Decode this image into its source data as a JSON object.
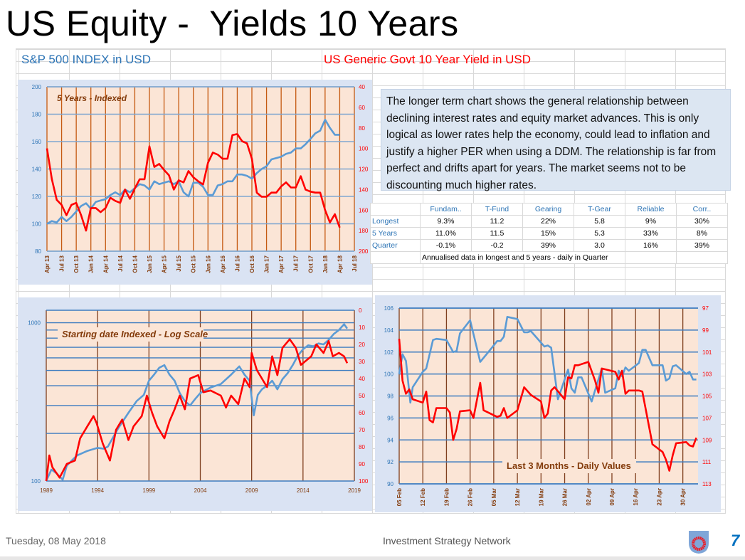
{
  "title": "US Equity -  Yields 10 Years",
  "headers": {
    "left": "S&P 500 INDEX  in  USD",
    "right": "US Generic Govt 10 Year Yield  in  USD"
  },
  "commentary": "The longer term chart shows the general relationship between declining interest rates and equity market advances.  This is only logical as lower rates help the economy, could lead to inflation and justify a higher PER when using a DDM.  The relationship is far from perfect and drifts apart for years.  The market seems not to be discounting much higher rates.",
  "stats_table": {
    "columns": [
      "Fundam..",
      "T-Fund",
      "Gearing",
      "T-Gear",
      "Reliable",
      "Corr.."
    ],
    "rows": [
      {
        "label": "Longest",
        "values": [
          "9.3%",
          "11.2",
          "22%",
          "5.8",
          "9%",
          "30%"
        ]
      },
      {
        "label": "5 Years",
        "values": [
          "11.0%",
          "11.5",
          "15%",
          "5.3",
          "33%",
          "8%"
        ]
      },
      {
        "label": "Quarter",
        "values": [
          "-0.1%",
          "-0.2",
          "39%",
          "3.0",
          "16%",
          "39%"
        ]
      }
    ],
    "note": "Annualised data in longest and 5 years - daily in Quarter"
  },
  "footer": {
    "date": "Tuesday, 08 May 2018",
    "organization": "Investment Strategy Network",
    "page": "7",
    "logo_icon": "shield-target-icon"
  },
  "colors": {
    "equity": "#5b9bd5",
    "yield": "#ff0000",
    "plot_bg": "#fbe5d6",
    "panel_bg": "#dae3f3",
    "label_brown": "#843c0c"
  },
  "chart_data": [
    {
      "type": "line",
      "title": "5 Years - Indexed",
      "x_unit": "months since Apr 13",
      "xlim": [
        0,
        63
      ],
      "x_ticks": [
        0,
        3,
        6,
        9,
        12,
        15,
        18,
        21,
        24,
        27,
        30,
        33,
        36,
        39,
        42,
        45,
        48,
        51,
        54,
        57,
        60,
        63
      ],
      "x_tick_labels": [
        "Apr 13",
        "Jul 13",
        "Oct 13",
        "Jan 14",
        "Apr 14",
        "Jul 14",
        "Oct 14",
        "Jan 15",
        "Apr 15",
        "Jul 15",
        "Oct 15",
        "Jan 16",
        "Apr 16",
        "Jul 16",
        "Oct 16",
        "Jan 17",
        "Apr 17",
        "Jul 17",
        "Oct 17",
        "Jan 18",
        "Apr 18",
        "Jul 18"
      ],
      "y_left": {
        "lim": [
          80,
          200
        ],
        "ticks": [
          80,
          100,
          120,
          140,
          160,
          180,
          200
        ],
        "tick_labels": [
          "80",
          "100",
          "120",
          "140",
          "160",
          "180",
          "200"
        ]
      },
      "y_right": {
        "lim": [
          40,
          200
        ],
        "inverted": true,
        "ticks": [
          40,
          60,
          80,
          100,
          120,
          140,
          160,
          180,
          200
        ],
        "tick_labels": [
          "40",
          "60",
          "80",
          "100",
          "120",
          "140",
          "160",
          "180",
          "200"
        ]
      },
      "series": [
        {
          "name": "S&P 500 INDEX",
          "axis": "left",
          "values": [
            100,
            102,
            101,
            105,
            102,
            105,
            109,
            113,
            115,
            111,
            116,
            117,
            118,
            121,
            123,
            121,
            125,
            123,
            126,
            129,
            128,
            125,
            131,
            129,
            130,
            131,
            129,
            131,
            123,
            120,
            130,
            130,
            127,
            121,
            121,
            128,
            129,
            131,
            131,
            136,
            136,
            135,
            133,
            137,
            140,
            142,
            147,
            148,
            149,
            151,
            152,
            155,
            155,
            158,
            162,
            166,
            168,
            176,
            170,
            165,
            165
          ]
        },
        {
          "name": "US Generic Govt 10 Year Yield",
          "axis": "right",
          "values": [
            100,
            130,
            150,
            155,
            165,
            155,
            153,
            165,
            180,
            158,
            158,
            162,
            158,
            148,
            151,
            153,
            140,
            149,
            139,
            130,
            130,
            98,
            118,
            115,
            121,
            126,
            140,
            131,
            133,
            122,
            128,
            132,
            135,
            114,
            104,
            106,
            110,
            110,
            87,
            86,
            93,
            95,
            110,
            143,
            147,
            147,
            143,
            143,
            137,
            133,
            138,
            138,
            127,
            140,
            142,
            143,
            143,
            160,
            172,
            164,
            177
          ]
        }
      ]
    },
    {
      "type": "line",
      "title": "Starting date Indexed - Log Scale",
      "x_unit": "year",
      "xlim": [
        1989,
        2019
      ],
      "x_ticks": [
        1989,
        1994,
        1999,
        2004,
        2009,
        2014,
        2019
      ],
      "x_tick_labels": [
        "1989",
        "1994",
        "1999",
        "2004",
        "2009",
        "2014",
        "2019"
      ],
      "y_left": {
        "lim": [
          100,
          1200
        ],
        "scale": "log",
        "ticks": [
          100,
          1000
        ],
        "tick_labels": [
          "100",
          "1000"
        ],
        "grid": [
          200,
          300,
          400,
          500,
          600,
          700,
          800,
          900,
          1000
        ]
      },
      "y_right": {
        "lim": [
          0,
          100
        ],
        "inverted": true,
        "ticks": [
          0,
          10,
          20,
          30,
          40,
          50,
          60,
          70,
          80,
          90,
          100
        ],
        "tick_labels": [
          "0",
          "10",
          "20",
          "30",
          "40",
          "50",
          "60",
          "70",
          "80",
          "90",
          "100"
        ]
      },
      "series": [
        {
          "name": "S&P 500 INDEX",
          "axis": "left",
          "x": [
            1989,
            1989.5,
            1990,
            1990.6,
            1991,
            1991.5,
            1992,
            1993,
            1994,
            1994.6,
            1995,
            1996,
            1997,
            1997.8,
            1998.5,
            1999,
            1999.5,
            2000,
            2000.5,
            2001,
            2001.5,
            2002,
            2002.5,
            2003,
            2003.5,
            2004,
            2005,
            2006,
            2007,
            2007.8,
            2008.3,
            2008.8,
            2009.2,
            2009.6,
            2010,
            2010.5,
            2011,
            2011.5,
            2012,
            2012.5,
            2013,
            2013.5,
            2014,
            2014.5,
            2015,
            2015.5,
            2016,
            2016.5,
            2017,
            2017.5,
            2018,
            2018.3
          ],
          "values": [
            100,
            118,
            112,
            102,
            125,
            135,
            145,
            155,
            162,
            160,
            165,
            215,
            270,
            320,
            350,
            430,
            470,
            520,
            540,
            470,
            430,
            360,
            320,
            300,
            330,
            360,
            390,
            410,
            470,
            530,
            470,
            430,
            260,
            350,
            380,
            400,
            430,
            380,
            440,
            480,
            540,
            620,
            680,
            720,
            710,
            740,
            730,
            780,
            850,
            900,
            980,
            920
          ]
        },
        {
          "name": "US Generic Govt 10 Year Yield",
          "axis": "right",
          "x": [
            1989,
            1989.3,
            1989.6,
            1990.3,
            1991,
            1991.8,
            1992.3,
            1993,
            1993.6,
            1993.9,
            1994.5,
            1995.2,
            1995.8,
            1996.4,
            1997,
            1997.5,
            1998.3,
            1998.8,
            1999.3,
            1999.8,
            2000.5,
            2001,
            2001.5,
            2002,
            2002.5,
            2003,
            2003.8,
            2004.3,
            2005,
            2006,
            2006.5,
            2007,
            2007.7,
            2008.3,
            2008.8,
            2009,
            2009.5,
            2010,
            2010.5,
            2011,
            2011.5,
            2012,
            2012.7,
            2013.3,
            2013.8,
            2014.2,
            2014.8,
            2015.3,
            2016,
            2016.5,
            2016.9,
            2017.5,
            2018,
            2018.3
          ],
          "values": [
            100,
            85,
            92,
            98,
            90,
            88,
            75,
            68,
            62,
            66,
            78,
            88,
            70,
            64,
            76,
            68,
            62,
            50,
            60,
            68,
            75,
            65,
            58,
            50,
            58,
            40,
            38,
            48,
            47,
            50,
            57,
            50,
            55,
            40,
            45,
            25,
            35,
            40,
            45,
            27,
            38,
            22,
            17,
            22,
            32,
            30,
            27,
            20,
            25,
            18,
            27,
            25,
            27,
            31
          ]
        }
      ]
    },
    {
      "type": "line",
      "title": "Last 3 Months - Daily Values",
      "x_unit": "days since 05 Feb",
      "xlim": [
        0,
        88.5
      ],
      "x_ticks": [
        0,
        7,
        14,
        21,
        28,
        35,
        42,
        49,
        56,
        63,
        70,
        77,
        84
      ],
      "x_tick_labels": [
        "05 Feb",
        "12 Feb",
        "19 Feb",
        "26 Feb",
        "05 Mar",
        "12 Mar",
        "19 Mar",
        "26 Mar",
        "02 Apr",
        "09 Apr",
        "16 Apr",
        "23 Apr",
        "30 Apr"
      ],
      "y_left": {
        "lim": [
          90,
          106
        ],
        "ticks": [
          90,
          92,
          94,
          96,
          98,
          100,
          102,
          104,
          106
        ],
        "tick_labels": [
          "90",
          "92",
          "94",
          "96",
          "98",
          "100",
          "102",
          "104",
          "106"
        ]
      },
      "y_right": {
        "lim": [
          97,
          113
        ],
        "inverted": true,
        "ticks": [
          97,
          99,
          101,
          103,
          105,
          107,
          109,
          111,
          113
        ],
        "tick_labels": [
          "97",
          "99",
          "101",
          "103",
          "105",
          "107",
          "109",
          "111",
          "113"
        ]
      },
      "series": [
        {
          "name": "S&P 500 INDEX",
          "axis": "left",
          "x": [
            0,
            1,
            2,
            3.3,
            4,
            7,
            8,
            10,
            11,
            14,
            16,
            17,
            18,
            21,
            24,
            28,
            29,
            30,
            31,
            32,
            35,
            37,
            38,
            39,
            43,
            44,
            45,
            47,
            50,
            51,
            52,
            53,
            54,
            57,
            60,
            61,
            64,
            65,
            66,
            67,
            68,
            71,
            72,
            73,
            75,
            78,
            79,
            80,
            81,
            82,
            85,
            86,
            87,
            88
          ],
          "values": [
            100,
            101.8,
            101.2,
            97.4,
            98.8,
            100.2,
            100.5,
            103.1,
            103.2,
            103.1,
            102,
            102.1,
            103.7,
            104.9,
            101.1,
            102.6,
            103,
            103,
            103.4,
            105.2,
            105,
            103.8,
            103.8,
            103.9,
            102.5,
            102.6,
            102.4,
            97.7,
            100.4,
            98.7,
            98.3,
            99.7,
            99.7,
            97.5,
            100.5,
            98.3,
            98.7,
            100.3,
            99.8,
            100.6,
            100.3,
            101,
            102.2,
            102.2,
            100.8,
            100.8,
            99.4,
            99.6,
            100.7,
            100.8,
            100,
            100.2,
            99.5,
            99.5
          ]
        },
        {
          "name": "US Generic Govt 10 Year Yield",
          "axis": "right",
          "x": [
            0,
            1,
            2,
            3,
            4,
            7,
            8,
            9,
            10,
            11,
            14,
            15,
            16,
            17,
            18,
            21,
            22,
            24,
            25,
            29,
            30,
            31,
            32,
            35,
            37,
            39,
            42,
            43,
            44,
            45,
            46,
            49,
            50,
            51,
            52,
            53,
            56,
            58,
            59,
            60,
            64,
            65,
            66,
            67,
            68,
            71,
            72,
            74,
            75,
            78,
            79,
            80,
            81,
            82,
            85,
            86,
            87,
            88
          ],
          "values": [
            99.8,
            103.6,
            104.8,
            104.4,
            105.3,
            105.6,
            104.6,
            107.2,
            107.4,
            106.1,
            106.1,
            106.5,
            109,
            108,
            106.4,
            106.3,
            107,
            103.8,
            106.3,
            106.9,
            106.8,
            106.1,
            107,
            106.3,
            104.2,
            104.9,
            105.5,
            107,
            106.6,
            104.5,
            104.2,
            105.3,
            103.3,
            103.4,
            102.2,
            102.2,
            101.9,
            103.6,
            104.7,
            102.5,
            102.8,
            103.5,
            102.7,
            104.8,
            104.5,
            104.5,
            104.6,
            107.8,
            109.4,
            110.1,
            110.8,
            111.8,
            110.4,
            109.3,
            109.2,
            109.5,
            109.6,
            108.8
          ]
        }
      ]
    }
  ]
}
